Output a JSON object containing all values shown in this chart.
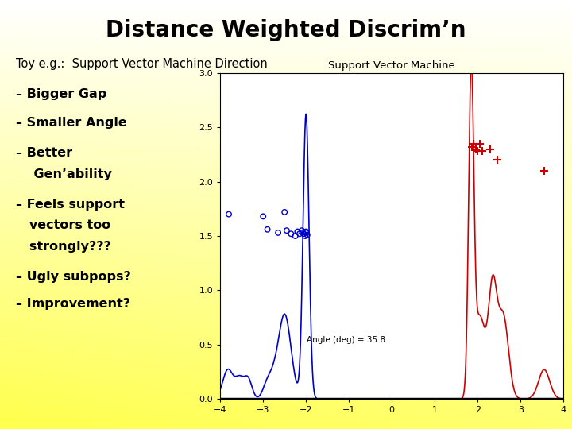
{
  "title": "Distance Weighted Discrim’n",
  "subtitle": "Toy e.g.:  Support Vector Machine Direction",
  "bullets": [
    "– Bigger Gap",
    "– Smaller Angle",
    "– Better",
    "    Gen’ability",
    "– Feels support",
    "   vectors too",
    "   strongly???",
    "– Ugly subpops?",
    "– Improvement?"
  ],
  "plot_title": "Support Vector Machine",
  "annotation": "Angle (deg) = 35.8",
  "bg_color_topleft": "#fffff0",
  "bg_color_topright": "#fffff0",
  "bg_color_bottomleft": "#ffff88",
  "bg_color_bottomright": "#ffff88",
  "plot_bg": "#ffffff",
  "blue_color": "#0000cc",
  "red_color": "#cc0000",
  "xlim": [
    -4,
    4
  ],
  "ylim": [
    0,
    3.0
  ],
  "xticks": [
    -4,
    -3,
    -2,
    -1,
    0,
    1,
    2,
    3,
    4
  ],
  "yticks": [
    0,
    0.5,
    1,
    1.5,
    2,
    2.5,
    3
  ],
  "blue_scatter_x": [
    -3.8,
    -2.9,
    -2.65,
    -2.5,
    -2.45,
    -2.35,
    -2.25,
    -2.2,
    -2.15,
    -2.1,
    -2.08,
    -2.05,
    -2.02,
    -2.0,
    -1.99,
    -1.97,
    -3.0
  ],
  "blue_scatter_y": [
    1.7,
    1.56,
    1.53,
    1.72,
    1.55,
    1.52,
    1.5,
    1.54,
    1.52,
    1.55,
    1.53,
    1.52,
    1.5,
    1.54,
    1.53,
    1.51,
    1.68
  ],
  "red_scatter_x": [
    1.87,
    1.91,
    1.95,
    2.0,
    2.05,
    2.1,
    2.3,
    2.45,
    3.55
  ],
  "red_scatter_y": [
    2.32,
    2.35,
    2.3,
    2.28,
    2.35,
    2.28,
    2.3,
    2.2,
    2.1
  ]
}
